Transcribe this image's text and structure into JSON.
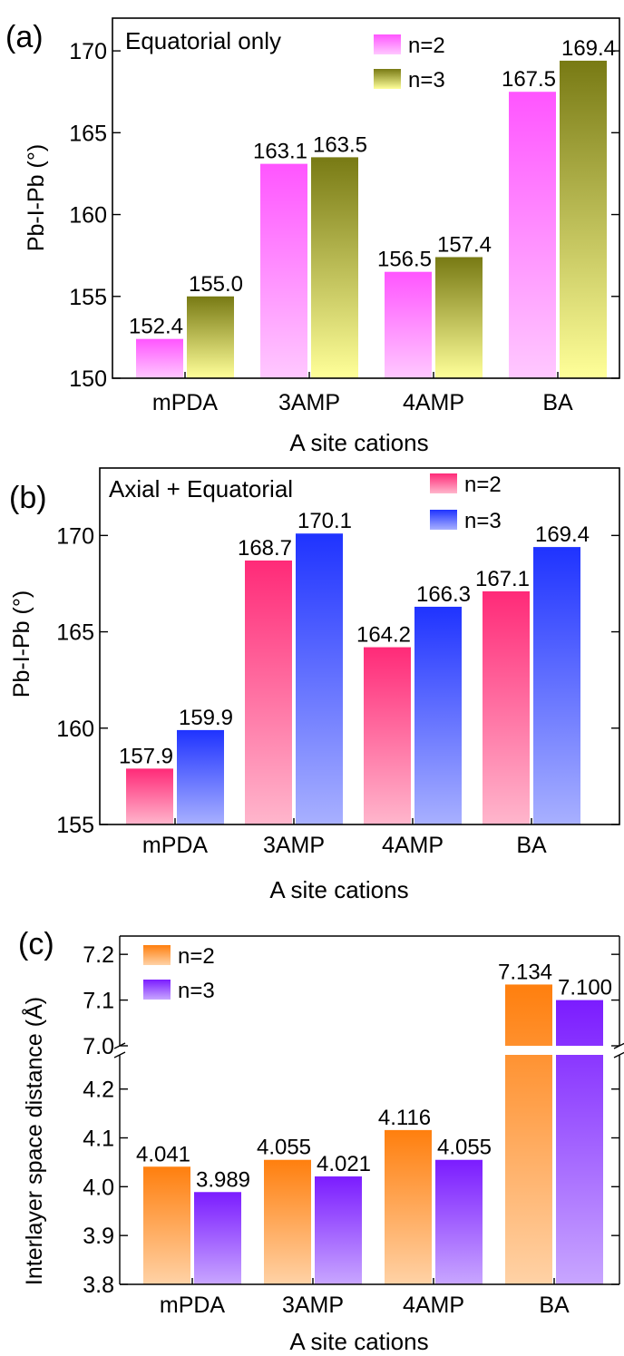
{
  "chart_data": [
    {
      "type": "bar",
      "panel_label": "(a)",
      "annotation": "Equatorial only",
      "categories": [
        "mPDA",
        "3AMP",
        "4AMP",
        "BA"
      ],
      "series": [
        {
          "name": "n=2",
          "values": [
            152.4,
            163.1,
            156.5,
            167.5
          ],
          "labels": [
            "152.4",
            "163.1",
            "156.5",
            "167.5"
          ]
        },
        {
          "name": "n=3",
          "values": [
            155.0,
            163.5,
            157.4,
            169.4
          ],
          "labels": [
            "155.0",
            "163.5",
            "157.4",
            "169.4"
          ]
        }
      ],
      "xlabel": "A site cations",
      "ylabel": "Pb-I-Pb (°)",
      "ylim": [
        150,
        172
      ],
      "yticks": [
        "150",
        "155",
        "160",
        "165",
        "170"
      ],
      "legend_position": "top-right",
      "colors": {
        "n=2": [
          "#ff55ff",
          "#ffc8ff"
        ],
        "n=3": [
          "#787a14",
          "#ffff99"
        ]
      }
    },
    {
      "type": "bar",
      "panel_label": "(b)",
      "annotation": "Axial + Equatorial",
      "categories": [
        "mPDA",
        "3AMP",
        "4AMP",
        "BA"
      ],
      "series": [
        {
          "name": "n=2",
          "values": [
            157.9,
            168.7,
            164.2,
            167.1
          ],
          "labels": [
            "157.9",
            "168.7",
            "164.2",
            "167.1"
          ]
        },
        {
          "name": "n=3",
          "values": [
            159.9,
            170.1,
            166.3,
            169.4
          ],
          "labels": [
            "159.9",
            "170.1",
            "166.3",
            "169.4"
          ]
        }
      ],
      "xlabel": "A site cations",
      "ylabel": "Pb-I-Pb (°)",
      "ylim": [
        155,
        173.5
      ],
      "yticks": [
        "155",
        "160",
        "165",
        "170"
      ],
      "legend_position": "top-right",
      "colors": {
        "n=2": [
          "#ff2a78",
          "#ffb6cc"
        ],
        "n=3": [
          "#1f33ff",
          "#a8b0ff"
        ]
      }
    },
    {
      "type": "bar",
      "panel_label": "(c)",
      "categories": [
        "mPDA",
        "3AMP",
        "4AMP",
        "BA"
      ],
      "series": [
        {
          "name": "n=2",
          "values": [
            4.041,
            4.055,
            4.116,
            7.134
          ],
          "labels": [
            "4.041",
            "4.055",
            "4.116",
            "7.134"
          ]
        },
        {
          "name": "n=3",
          "values": [
            3.989,
            4.021,
            4.055,
            7.1
          ],
          "labels": [
            "3.989",
            "4.021",
            "4.055",
            "7.100"
          ]
        }
      ],
      "xlabel": "A site cations",
      "ylabel": "Interlayer space distance (Å)",
      "ylim": [
        3.8,
        7.24
      ],
      "axis_break": {
        "lower_range": [
          3.8,
          4.27
        ],
        "upper_range": [
          7.0,
          7.24
        ]
      },
      "yticks_lower": [
        "3.8",
        "3.9",
        "4.0",
        "4.1",
        "4.2"
      ],
      "yticks_upper": [
        "7.0",
        "7.1",
        "7.2"
      ],
      "legend_position": "top-left",
      "colors": {
        "n=2": [
          "#ff7f0e",
          "#ffd2a6"
        ],
        "n=3": [
          "#7b1cff",
          "#c8a6ff"
        ]
      }
    }
  ]
}
